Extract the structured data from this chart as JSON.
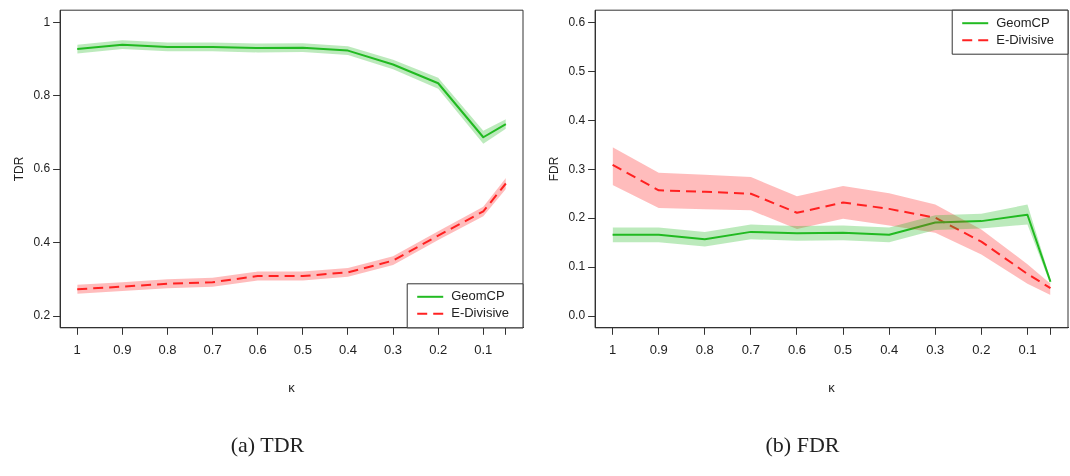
{
  "chart_data": [
    {
      "type": "line",
      "xlabel": "κ",
      "ylabel": "TDR",
      "annotations": [
        "(a) TDR"
      ],
      "legend": "bottom right",
      "grid": false,
      "x": [
        1,
        0.9,
        0.8,
        0.7,
        0.6,
        0.5,
        0.4,
        0.3,
        0.2,
        0.1,
        0.05
      ],
      "xlim": [
        1.038,
        0.012
      ],
      "xticks": [
        1,
        0.9,
        0.8,
        0.7,
        0.6,
        0.5,
        0.4,
        0.3,
        0.2,
        0.1,
        {
          "value": 0.05,
          "label": null
        }
      ],
      "ylim": [
        0.168,
        1.033
      ],
      "yticks": [
        0.2,
        0.4,
        0.6,
        0.8,
        1.0
      ],
      "series": [
        {
          "name": "GeomCP",
          "color": "#22bb22",
          "line_style": "solid",
          "values": [
            0.927,
            0.939,
            0.933,
            0.933,
            0.93,
            0.931,
            0.923,
            0.885,
            0.834,
            0.687,
            0.723
          ],
          "lower": [
            0.915,
            0.927,
            0.921,
            0.921,
            0.918,
            0.919,
            0.911,
            0.872,
            0.819,
            0.669,
            0.71
          ],
          "upper": [
            0.939,
            0.951,
            0.945,
            0.945,
            0.942,
            0.943,
            0.935,
            0.898,
            0.849,
            0.705,
            0.736
          ]
        },
        {
          "name": "E-Divisive",
          "color": "#ff2222",
          "line_style": "dashed",
          "values": [
            0.273,
            0.28,
            0.288,
            0.292,
            0.309,
            0.309,
            0.319,
            0.351,
            0.419,
            0.485,
            0.561
          ],
          "lower": [
            0.261,
            0.268,
            0.276,
            0.28,
            0.297,
            0.297,
            0.307,
            0.339,
            0.407,
            0.472,
            0.546
          ],
          "upper": [
            0.285,
            0.292,
            0.3,
            0.304,
            0.321,
            0.321,
            0.331,
            0.363,
            0.431,
            0.498,
            0.576
          ]
        }
      ]
    },
    {
      "type": "line",
      "xlabel": "κ",
      "ylabel": "FDR",
      "annotations": [
        "(b) FDR"
      ],
      "legend": "top right",
      "grid": false,
      "x": [
        1,
        0.9,
        0.8,
        0.7,
        0.6,
        0.5,
        0.4,
        0.3,
        0.2,
        0.1,
        0.05
      ],
      "xlim": [
        1.038,
        0.012
      ],
      "xticks": [
        1,
        0.9,
        0.8,
        0.7,
        0.6,
        0.5,
        0.4,
        0.3,
        0.2,
        0.1,
        {
          "value": 0.05,
          "label": null
        }
      ],
      "ylim": [
        -0.024,
        0.625
      ],
      "yticks": [
        {
          "value": 0,
          "label": "0.0"
        },
        0.1,
        0.2,
        0.3,
        0.4,
        0.5,
        0.6
      ],
      "series": [
        {
          "name": "GeomCP",
          "color": "#22bb22",
          "line_style": "solid",
          "values": [
            0.166,
            0.166,
            0.157,
            0.172,
            0.169,
            0.17,
            0.166,
            0.191,
            0.194,
            0.207,
            0.07
          ],
          "lower": [
            0.151,
            0.151,
            0.142,
            0.157,
            0.154,
            0.155,
            0.151,
            0.176,
            0.179,
            0.187,
            0.065
          ],
          "upper": [
            0.181,
            0.181,
            0.172,
            0.187,
            0.184,
            0.185,
            0.181,
            0.206,
            0.209,
            0.228,
            0.075
          ]
        },
        {
          "name": "E-Divisive",
          "color": "#ff2222",
          "line_style": "dashed",
          "values": [
            0.309,
            0.257,
            0.254,
            0.25,
            0.211,
            0.232,
            0.219,
            0.201,
            0.152,
            0.086,
            0.057
          ],
          "lower": [
            0.268,
            0.221,
            0.218,
            0.216,
            0.178,
            0.199,
            0.185,
            0.17,
            0.126,
            0.066,
            0.043
          ],
          "upper": [
            0.345,
            0.293,
            0.289,
            0.284,
            0.245,
            0.266,
            0.251,
            0.228,
            0.177,
            0.106,
            0.066
          ]
        }
      ]
    }
  ]
}
